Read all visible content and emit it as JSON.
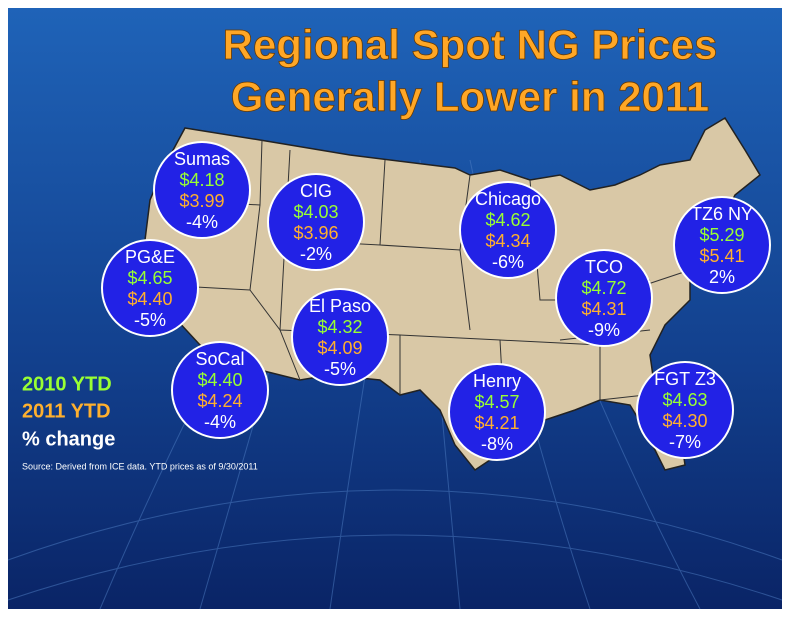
{
  "title": [
    "Regional Spot NG Prices",
    "Generally Lower in 2011"
  ],
  "hubs": [
    {
      "name": "Sumas",
      "ytd2010": "$4.18",
      "ytd2011": "$3.99",
      "change": "-4%"
    },
    {
      "name": "CIG",
      "ytd2010": "$4.03",
      "ytd2011": "$3.96",
      "change": "-2%"
    },
    {
      "name": "Chicago",
      "ytd2010": "$4.62",
      "ytd2011": "$4.34",
      "change": "-6%"
    },
    {
      "name": "TZ6 NY",
      "ytd2010": "$5.29",
      "ytd2011": "$5.41",
      "change": "2%"
    },
    {
      "name": "PG&E",
      "ytd2010": "$4.65",
      "ytd2011": "$4.40",
      "change": "-5%"
    },
    {
      "name": "TCO",
      "ytd2010": "$4.72",
      "ytd2011": "$4.31",
      "change": "-9%"
    },
    {
      "name": "El Paso",
      "ytd2010": "$4.32",
      "ytd2011": "$4.09",
      "change": "-5%"
    },
    {
      "name": "SoCal",
      "ytd2010": "$4.40",
      "ytd2011": "$4.24",
      "change": "-4%"
    },
    {
      "name": "Henry",
      "ytd2010": "$4.57",
      "ytd2011": "$4.21",
      "change": "-8%"
    },
    {
      "name": "FGT Z3",
      "ytd2010": "$4.63",
      "ytd2011": "$4.30",
      "change": "-7%"
    }
  ],
  "legend": [
    "2010 YTD",
    "2011 YTD",
    "% change"
  ],
  "source": "Source: Derived from ICE data.  YTD prices as of 9/30/2011"
}
